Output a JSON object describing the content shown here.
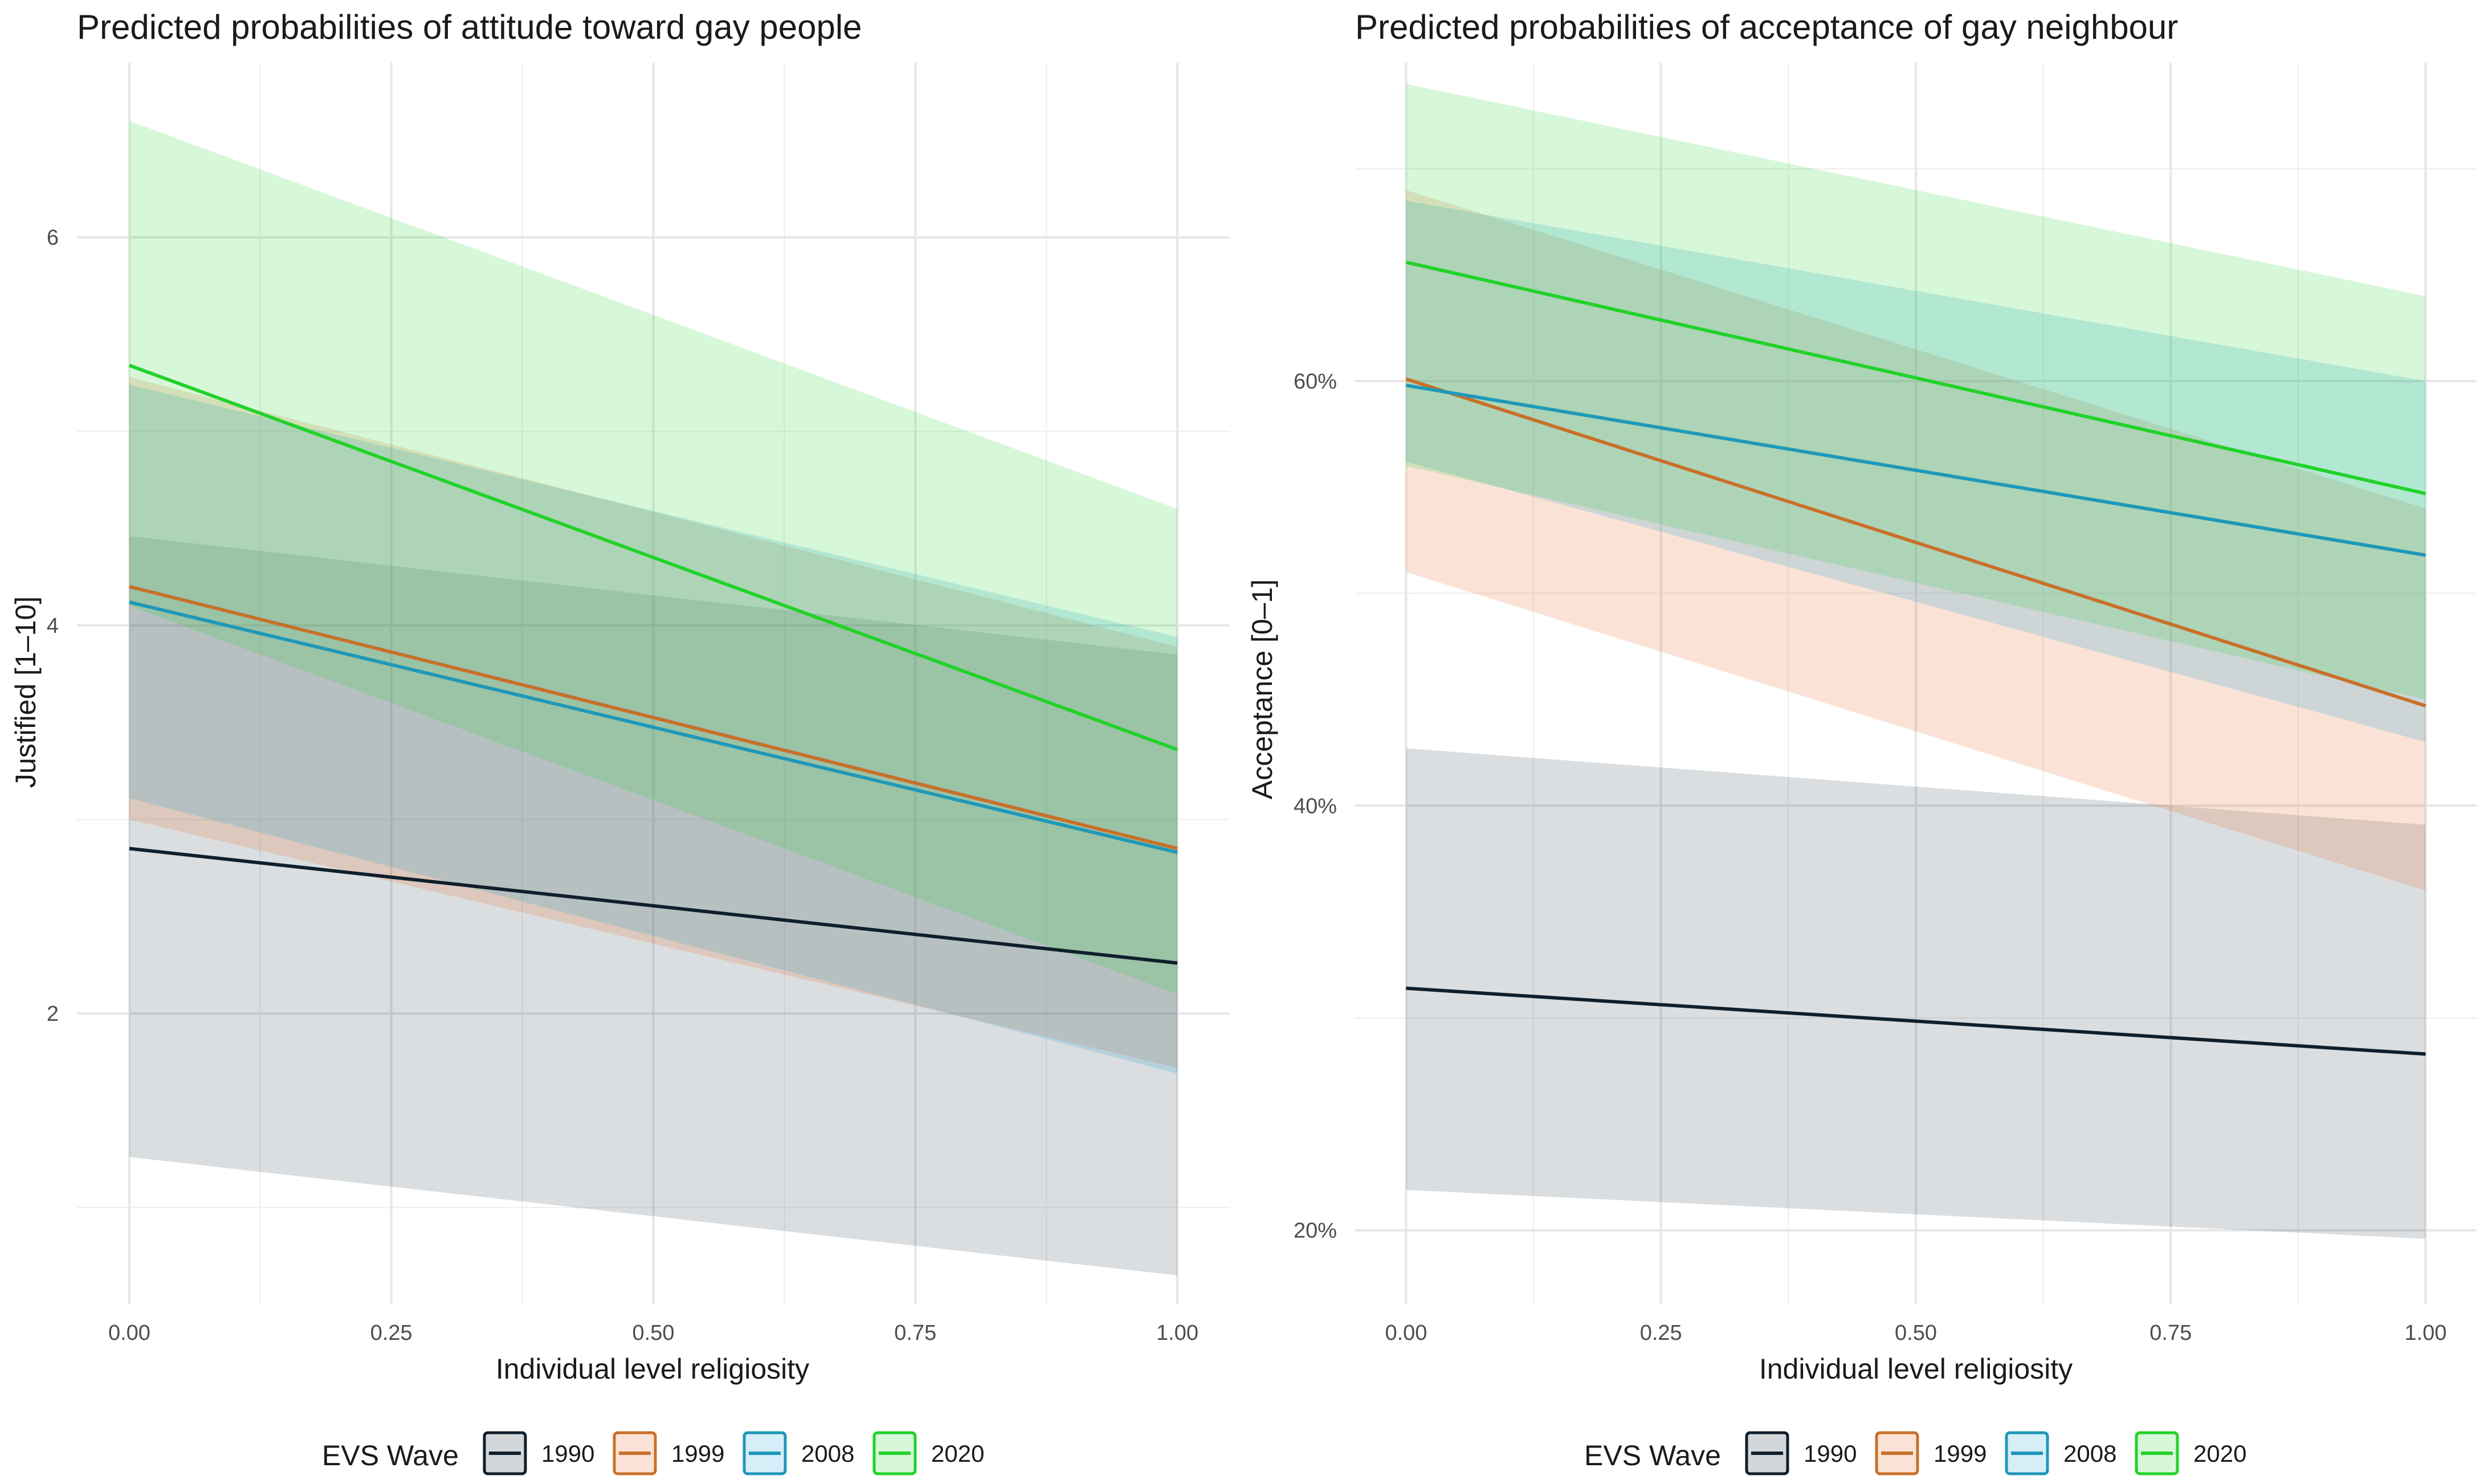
{
  "colors": {
    "1990": "#0f1f2c",
    "1999": "#e2621c",
    "2008": "#1ea1d6",
    "2020": "#22d22a",
    "line_1999": "#c8702a",
    "line_2008": "#1f98b8"
  },
  "legend": {
    "title": "EVS Wave",
    "items": [
      "1990",
      "1999",
      "2008",
      "2020"
    ]
  },
  "chart_data": [
    {
      "type": "line",
      "title": "Predicted probabilities of attitude toward gay people",
      "xlabel": "Individual level religiosity",
      "ylabel": "Justified [1–10]",
      "xlim": [
        -0.05,
        1.05
      ],
      "ylim": [
        0.5,
        6.9
      ],
      "x_ticks": [
        0,
        0.25,
        0.5,
        0.75,
        1
      ],
      "x_tick_labels": [
        "0.00",
        "0.25",
        "0.50",
        "0.75",
        "1.00"
      ],
      "y_ticks": [
        2,
        4,
        6
      ],
      "y_tick_labels": [
        "2",
        "4",
        "6"
      ],
      "series": [
        {
          "name": "1990",
          "x": [
            0,
            1
          ],
          "y": [
            2.85,
            2.26
          ],
          "lower": [
            1.26,
            0.65
          ],
          "upper": [
            4.46,
            3.85
          ]
        },
        {
          "name": "1999",
          "x": [
            0,
            1
          ],
          "y": [
            4.2,
            2.85
          ],
          "lower": [
            3.0,
            1.72
          ],
          "upper": [
            5.28,
            3.89
          ]
        },
        {
          "name": "2008",
          "x": [
            0,
            1
          ],
          "y": [
            4.12,
            2.83
          ],
          "lower": [
            3.11,
            1.69
          ],
          "upper": [
            5.24,
            3.94
          ]
        },
        {
          "name": "2020",
          "x": [
            0,
            1
          ],
          "y": [
            5.34,
            3.36
          ],
          "lower": [
            4.1,
            2.1
          ],
          "upper": [
            6.6,
            4.6
          ]
        }
      ]
    },
    {
      "type": "line",
      "title": "Predicted probabilities of acceptance of gay neighbour",
      "xlabel": "Individual level religiosity",
      "ylabel": "Acceptance [0–1]",
      "xlim": [
        -0.05,
        1.05
      ],
      "ylim": [
        0.165,
        0.75
      ],
      "x_ticks": [
        0,
        0.25,
        0.5,
        0.75,
        1
      ],
      "x_tick_labels": [
        "0.00",
        "0.25",
        "0.50",
        "0.75",
        "1.00"
      ],
      "y_ticks": [
        0.2,
        0.4,
        0.6
      ],
      "y_tick_labels": [
        "20%",
        "40%",
        "60%"
      ],
      "series": [
        {
          "name": "1990",
          "x": [
            0,
            1
          ],
          "y": [
            0.314,
            0.283
          ],
          "lower": [
            0.219,
            0.196
          ],
          "upper": [
            0.427,
            0.391
          ]
        },
        {
          "name": "1999",
          "x": [
            0,
            1
          ],
          "y": [
            0.601,
            0.447
          ],
          "lower": [
            0.51,
            0.36
          ],
          "upper": [
            0.69,
            0.54
          ]
        },
        {
          "name": "2008",
          "x": [
            0,
            1
          ],
          "y": [
            0.598,
            0.518
          ],
          "lower": [
            0.562,
            0.43
          ],
          "upper": [
            0.685,
            0.6
          ]
        },
        {
          "name": "2020",
          "x": [
            0,
            1
          ],
          "y": [
            0.656,
            0.547
          ],
          "lower": [
            0.56,
            0.45
          ],
          "upper": [
            0.74,
            0.64
          ]
        }
      ]
    }
  ]
}
